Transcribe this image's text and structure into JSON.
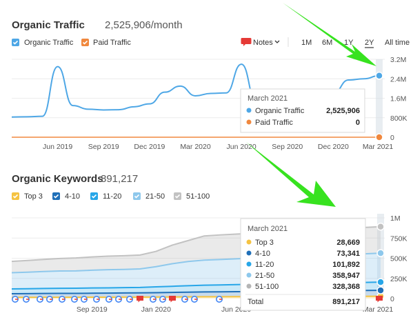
{
  "traffic": {
    "title": "Organic Traffic",
    "title_value": "2,525,906/month",
    "legend": [
      {
        "label": "Organic Traffic",
        "color": "#4ea7e6",
        "checked": true
      },
      {
        "label": "Paid Traffic",
        "color": "#f0883e",
        "checked": true
      }
    ],
    "controls": {
      "notes": "Notes",
      "ranges": [
        "1M",
        "6M",
        "1Y",
        "2Y",
        "All time"
      ],
      "active_range": "2Y"
    },
    "tooltip": {
      "title": "March 2021",
      "rows": [
        {
          "label": "Organic Traffic",
          "value": "2,525,906",
          "color": "#4ea7e6"
        },
        {
          "label": "Paid Traffic",
          "value": "0",
          "color": "#f0883e"
        }
      ]
    }
  },
  "keywords": {
    "title": "Organic Keywords",
    "title_value": "891,217",
    "legend": [
      {
        "label": "Top 3",
        "color": "#f5c342"
      },
      {
        "label": "4-10",
        "color": "#1f6fb8"
      },
      {
        "label": "11-20",
        "color": "#27a6e8"
      },
      {
        "label": "21-50",
        "color": "#8ec8ec"
      },
      {
        "label": "51-100",
        "color": "#c2c2c2"
      }
    ],
    "tooltip": {
      "title": "March 2021",
      "rows": [
        {
          "label": "Top 3",
          "value": "28,669",
          "color": "#f5c342"
        },
        {
          "label": "4-10",
          "value": "73,341",
          "color": "#1f6fb8"
        },
        {
          "label": "11-20",
          "value": "101,892",
          "color": "#27a6e8"
        },
        {
          "label": "21-50",
          "value": "358,947",
          "color": "#8ec8ec"
        },
        {
          "label": "51-100",
          "value": "328,368",
          "color": "#b5b5b5"
        }
      ],
      "total_label": "Total",
      "total_value": "891,217"
    }
  },
  "chart_data": [
    {
      "type": "line",
      "title": "Organic Traffic",
      "x_tick_labels": [
        "Jun 2019",
        "Sep 2019",
        "Dec 2019",
        "Mar 2020",
        "Jun 2020",
        "Sep 2020",
        "Dec 2020",
        "Mar 2021"
      ],
      "y_tick_labels": [
        "0",
        "800K",
        "1.6M",
        "2.4M",
        "3.2M"
      ],
      "ylim": [
        0,
        3200000
      ],
      "x": [
        "2019-03",
        "2019-04",
        "2019-05",
        "2019-06",
        "2019-07",
        "2019-08",
        "2019-09",
        "2019-10",
        "2019-11",
        "2019-12",
        "2020-01",
        "2020-02",
        "2020-03",
        "2020-04",
        "2020-05",
        "2020-06",
        "2020-07",
        "2020-08",
        "2020-09",
        "2020-10",
        "2020-11",
        "2020-12",
        "2021-01",
        "2021-02",
        "2021-03"
      ],
      "series": [
        {
          "name": "Organic Traffic",
          "color": "#4ea7e6",
          "values": [
            830000,
            840000,
            860000,
            2900000,
            1300000,
            1150000,
            1120000,
            1130000,
            1250000,
            1370000,
            1850000,
            2100000,
            1700000,
            1800000,
            1820000,
            3000000,
            1400000,
            1200000,
            1200000,
            1400000,
            1600000,
            1800000,
            2350000,
            2400000,
            2525906
          ]
        },
        {
          "name": "Paid Traffic",
          "color": "#f0883e",
          "values": [
            0,
            0,
            0,
            0,
            0,
            0,
            0,
            0,
            0,
            0,
            0,
            0,
            0,
            0,
            0,
            0,
            0,
            0,
            0,
            0,
            0,
            0,
            0,
            0,
            0
          ]
        }
      ]
    },
    {
      "type": "area",
      "title": "Organic Keywords",
      "x_tick_labels": [
        "Sep 2019",
        "Jan 2020",
        "Jun 2020",
        "Mar 2021"
      ],
      "y_tick_labels": [
        "0",
        "250K",
        "500K",
        "750K",
        "1M"
      ],
      "ylim": [
        0,
        1000000
      ],
      "stacked": true,
      "x": [
        "2019-04",
        "2019-05",
        "2019-06",
        "2019-07",
        "2019-08",
        "2019-09",
        "2019-10",
        "2019-11",
        "2019-12",
        "2020-01",
        "2020-02",
        "2020-03",
        "2020-04",
        "2020-05",
        "2020-06",
        "2020-07",
        "2020-08",
        "2020-09",
        "2020-10",
        "2020-11",
        "2020-12",
        "2021-01",
        "2021-02",
        "2021-03"
      ],
      "series": [
        {
          "name": "Top 3",
          "color": "#f5c342",
          "values": [
            15000,
            15000,
            16000,
            16000,
            16000,
            17000,
            17000,
            18000,
            18000,
            19000,
            20000,
            21000,
            22000,
            22000,
            23000,
            23000,
            24000,
            24000,
            25000,
            26000,
            27000,
            27000,
            28000,
            28669
          ]
        },
        {
          "name": "4-10",
          "color": "#1f6fb8",
          "values": [
            45000,
            46000,
            47000,
            48000,
            48000,
            49000,
            50000,
            51000,
            52000,
            54000,
            56000,
            58000,
            60000,
            61000,
            62000,
            63000,
            64000,
            65000,
            66000,
            68000,
            70000,
            71000,
            72000,
            73341
          ]
        },
        {
          "name": "11-20",
          "color": "#27a6e8",
          "values": [
            60000,
            61000,
            62000,
            63000,
            64000,
            65000,
            66000,
            67000,
            68000,
            72000,
            76000,
            80000,
            84000,
            86000,
            88000,
            90000,
            92000,
            93000,
            94000,
            96000,
            98000,
            99000,
            100000,
            101892
          ]
        },
        {
          "name": "21-50",
          "color": "#8ec8ec",
          "values": [
            200000,
            205000,
            210000,
            215000,
            215000,
            220000,
            225000,
            225000,
            230000,
            250000,
            280000,
            300000,
            310000,
            315000,
            320000,
            325000,
            330000,
            335000,
            340000,
            345000,
            350000,
            352000,
            355000,
            358947
          ]
        },
        {
          "name": "51-100",
          "color": "#c2c2c2",
          "values": [
            140000,
            145000,
            150000,
            155000,
            160000,
            165000,
            168000,
            170000,
            172000,
            190000,
            230000,
            260000,
            300000,
            305000,
            306000,
            308000,
            310000,
            312000,
            315000,
            318000,
            320000,
            323000,
            326000,
            328368
          ]
        }
      ]
    }
  ]
}
